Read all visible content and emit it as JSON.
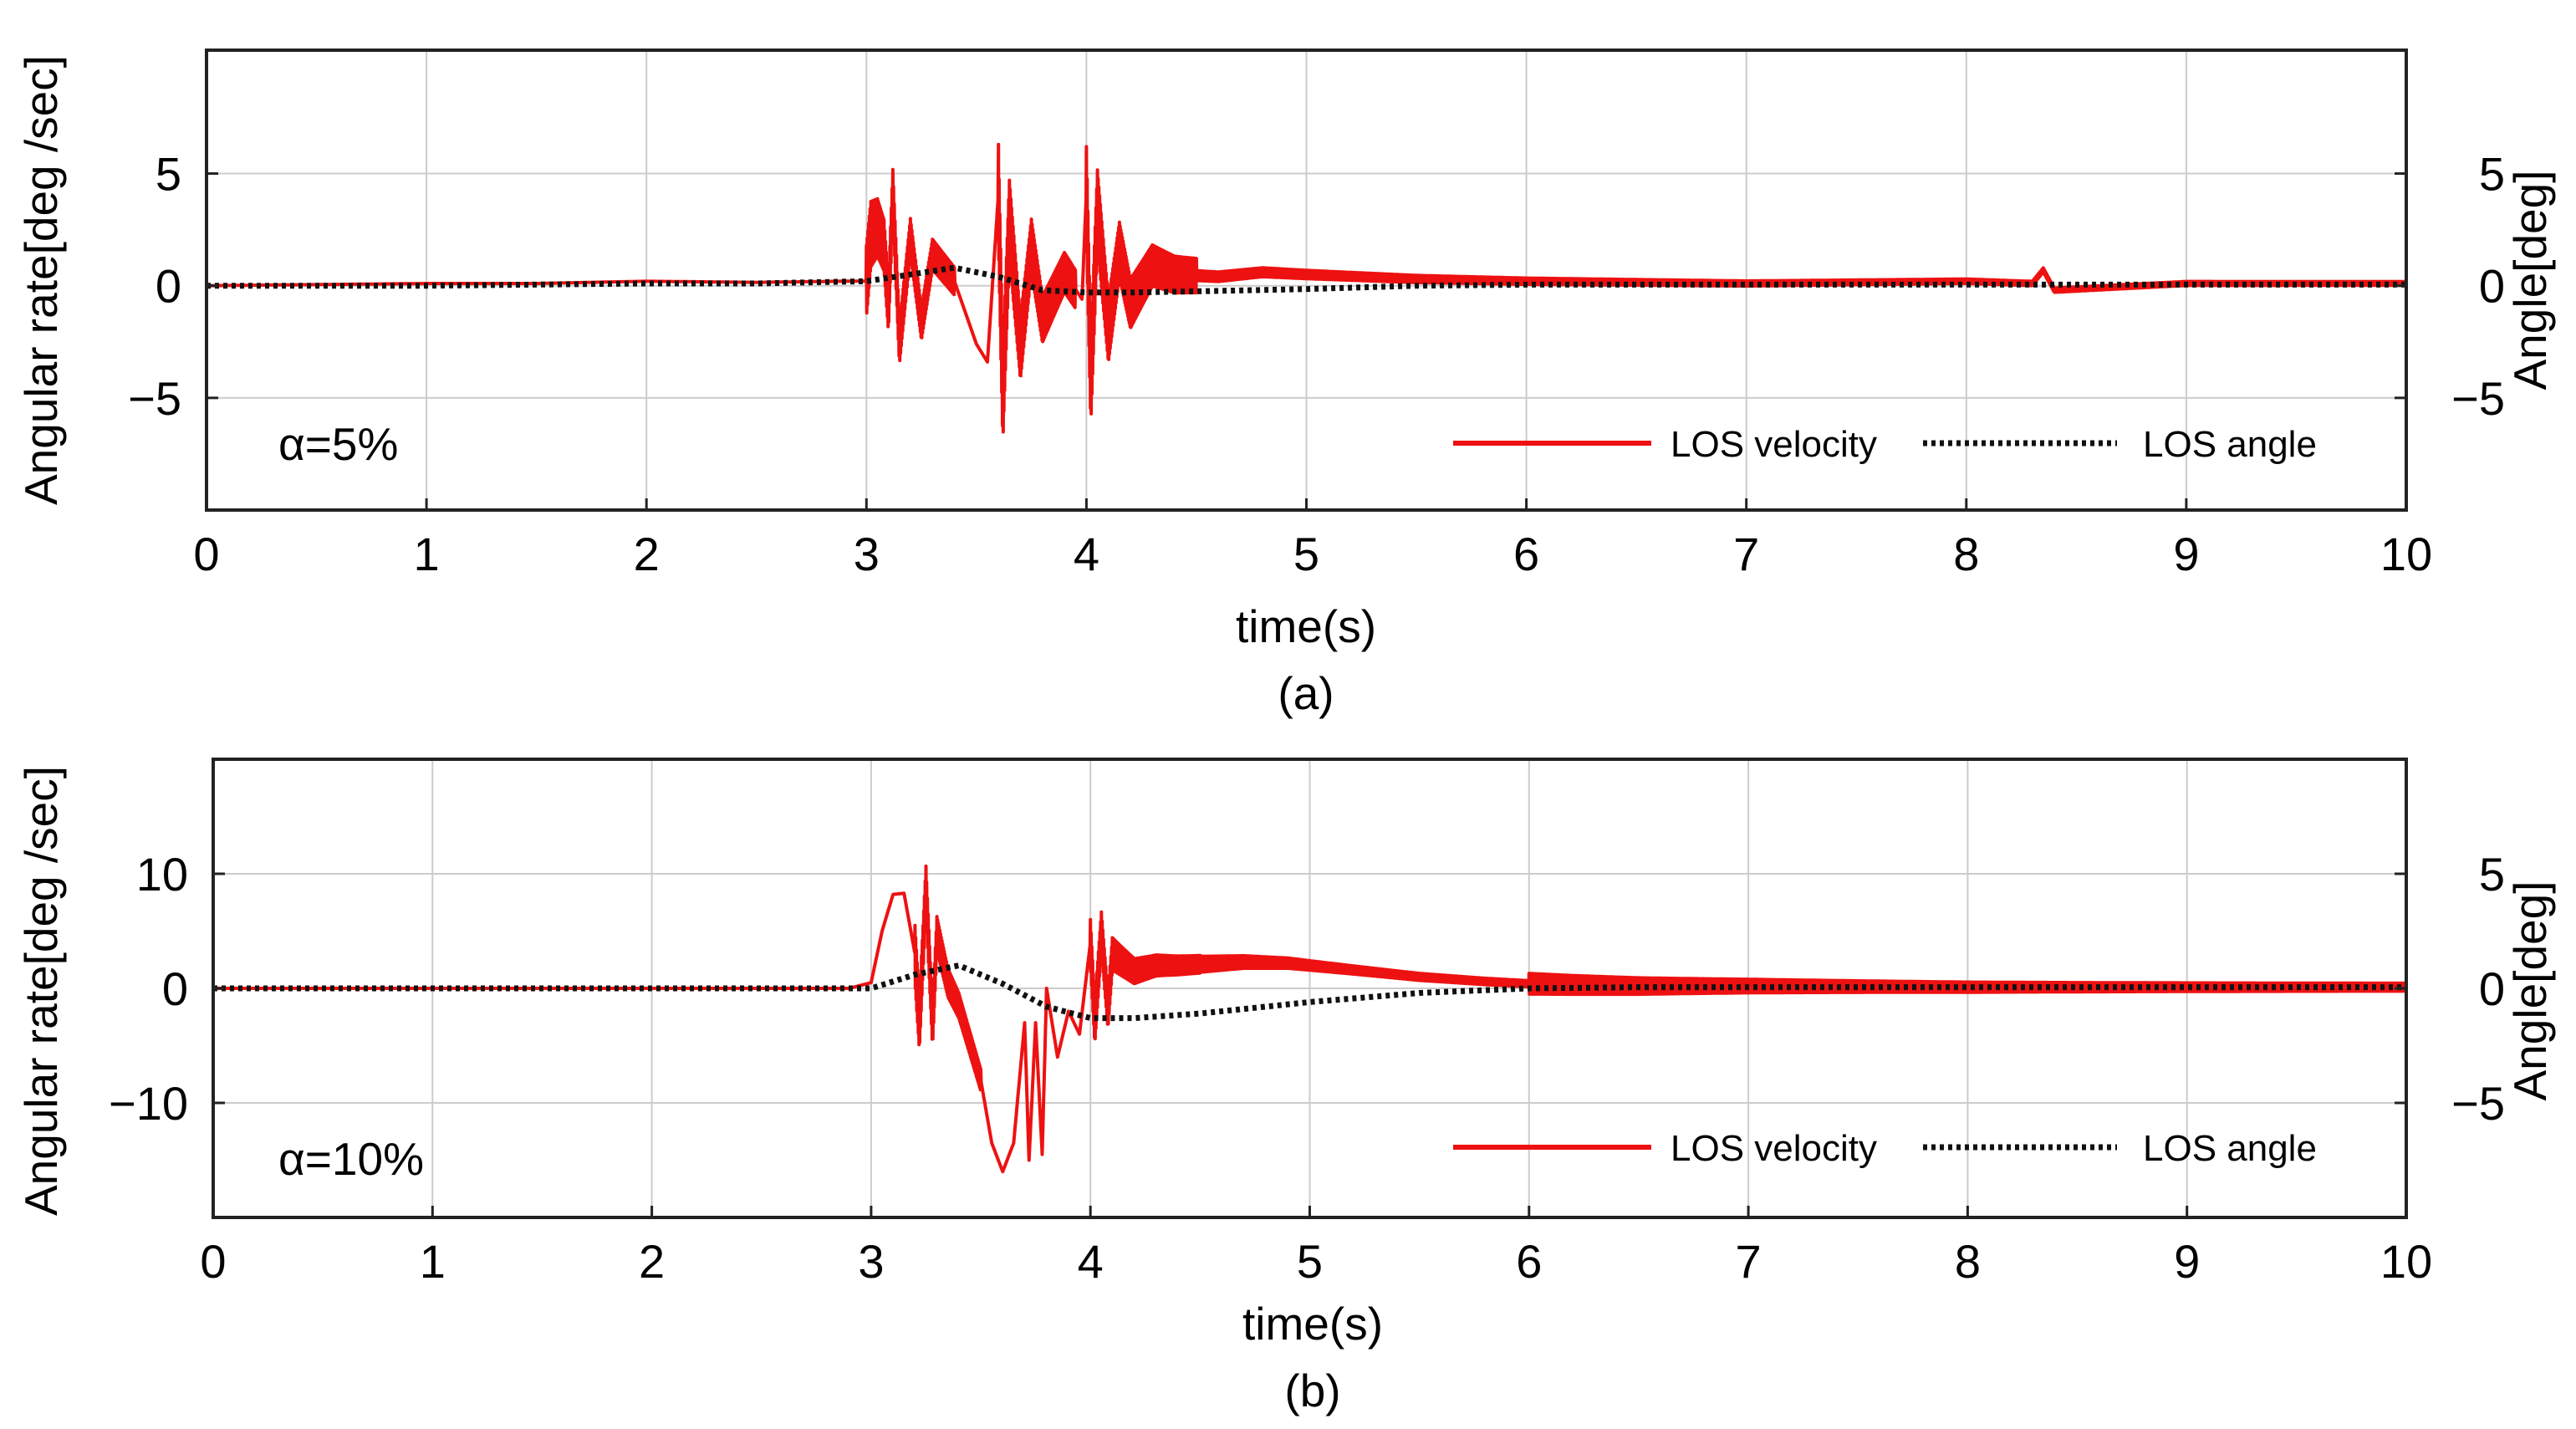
{
  "chart_data": [
    {
      "type": "line",
      "panel_caption": "(a)",
      "annotation": "α=5%",
      "xlabel": "time(s)",
      "ylabel": "Angular rate[deg /sec]",
      "y2label": "Angle[deg]",
      "xlim": [
        0,
        10
      ],
      "ylim": [
        -10,
        10.5
      ],
      "y2lim": [
        -10,
        10.5
      ],
      "xticks": [
        "0",
        "1",
        "2",
        "3",
        "4",
        "5",
        "6",
        "7",
        "8",
        "9",
        "10"
      ],
      "yticks": [
        {
          "v": 5,
          "label": "5"
        },
        {
          "v": 0,
          "label": "0"
        },
        {
          "v": -5,
          "label": "−5"
        }
      ],
      "y2ticks": [
        {
          "v": 5,
          "label": "5"
        },
        {
          "v": 0,
          "label": "0"
        },
        {
          "v": -5,
          "label": "−5"
        }
      ],
      "grid": true,
      "legend_position": "bottom-right",
      "series": [
        {
          "name": "LOS velocity",
          "color": "#ee1111",
          "style": "solid",
          "axis": "left",
          "x": [
            0,
            0.5,
            1.0,
            1.5,
            2.0,
            2.5,
            2.9,
            3.0,
            3.02,
            3.05,
            3.08,
            3.1,
            3.12,
            3.15,
            3.2,
            3.25,
            3.3,
            3.4,
            3.5,
            3.55,
            3.6,
            3.62,
            3.65,
            3.7,
            3.75,
            3.8,
            3.9,
            3.98,
            4.0,
            4.02,
            4.05,
            4.1,
            4.15,
            4.2,
            4.3,
            4.4,
            4.6,
            4.8,
            5.0,
            5.5,
            6.0,
            7.0,
            8.0,
            8.3,
            8.35,
            8.4,
            9.0,
            10.0
          ],
          "y": [
            0,
            0.05,
            0.1,
            0.1,
            0.2,
            0.15,
            0.2,
            0.2,
            2.3,
            2.6,
            1.8,
            -1.0,
            4.2,
            -2.6,
            2.2,
            -1.7,
            1.4,
            0.2,
            -2.6,
            -3.4,
            4.1,
            -5.0,
            3.0,
            -2.8,
            1.8,
            -1.5,
            0.6,
            -0.6,
            4.2,
            -4.3,
            3.5,
            -2.0,
            1.6,
            -0.8,
            0.9,
            0.5,
            0.4,
            0.6,
            0.5,
            0.3,
            0.2,
            0.1,
            0.2,
            0.1,
            0.7,
            -0.2,
            0.1,
            0.1
          ],
          "band": [
            {
              "x": [
                3.0,
                3.4
              ],
              "amp": 1.6
            },
            {
              "x": [
                3.6,
                3.95
              ],
              "amp": 2.2
            },
            {
              "x": [
                4.0,
                4.5
              ],
              "amp": 2.0
            },
            {
              "x": [
                4.5,
                10.0
              ],
              "amp": 0.22
            }
          ]
        },
        {
          "name": "LOS angle",
          "color": "#111111",
          "style": "dotted",
          "axis": "right",
          "x": [
            0,
            1,
            2,
            2.5,
            3.0,
            3.2,
            3.4,
            3.6,
            3.8,
            4.0,
            4.2,
            4.5,
            5.0,
            5.5,
            6,
            7,
            8,
            9,
            10
          ],
          "y": [
            0,
            0,
            0.1,
            0.1,
            0.2,
            0.5,
            0.8,
            0.4,
            -0.2,
            -0.3,
            -0.3,
            -0.25,
            -0.15,
            0,
            0.05,
            0.05,
            0.05,
            0.05,
            0.05
          ]
        }
      ]
    },
    {
      "type": "line",
      "panel_caption": "(b)",
      "annotation": "α=10%",
      "xlabel": "time(s)",
      "ylabel": "Angular rate[deg /sec]",
      "y2label": "Angle[deg]",
      "xlim": [
        0,
        10
      ],
      "ylim": [
        -20,
        20
      ],
      "y2lim": [
        -10,
        10
      ],
      "xticks": [
        "0",
        "1",
        "2",
        "3",
        "4",
        "5",
        "6",
        "7",
        "8",
        "9",
        "10"
      ],
      "yticks": [
        {
          "v": 10,
          "label": "10"
        },
        {
          "v": 0,
          "label": "0"
        },
        {
          "v": -10,
          "label": "−10"
        }
      ],
      "y2ticks": [
        {
          "v": 5,
          "label": "5"
        },
        {
          "v": 0,
          "label": "0"
        },
        {
          "v": -5,
          "label": "−5"
        }
      ],
      "grid": true,
      "legend_position": "bottom-right",
      "series": [
        {
          "name": "LOS velocity",
          "color": "#ee1111",
          "style": "solid",
          "axis": "left",
          "x": [
            0,
            1,
            2,
            2.9,
            3.0,
            3.05,
            3.1,
            3.15,
            3.2,
            3.22,
            3.25,
            3.28,
            3.3,
            3.35,
            3.4,
            3.5,
            3.55,
            3.6,
            3.65,
            3.7,
            3.72,
            3.75,
            3.78,
            3.8,
            3.85,
            3.9,
            3.95,
            4.0,
            4.02,
            4.05,
            4.08,
            4.1,
            4.2,
            4.3,
            4.4,
            4.5,
            4.7,
            4.9,
            5.0,
            5.2,
            5.5,
            5.8,
            6.0,
            6.2,
            6.5,
            7,
            8,
            9,
            10
          ],
          "y": [
            0,
            0,
            0,
            0,
            0.5,
            5.0,
            8.2,
            8.3,
            3.0,
            -3.2,
            8.8,
            -3.5,
            4.8,
            0.5,
            -1.5,
            -8.0,
            -13.5,
            -16.0,
            -13.5,
            -3.0,
            -15.0,
            -3.0,
            -14.5,
            0,
            -6.0,
            -2.0,
            -4.0,
            4.0,
            -3.0,
            5.0,
            -2.0,
            3.0,
            1.5,
            2.0,
            2.0,
            2.1,
            2.3,
            2.2,
            2.0,
            1.6,
            1.0,
            0.6,
            0.4,
            0.3,
            0.2,
            0.2,
            0.1,
            0.1,
            0.1
          ],
          "band": [
            {
              "x": [
                3.2,
                3.5
              ],
              "amp": 2.5
            },
            {
              "x": [
                4.0,
                4.5
              ],
              "amp": 2.0
            },
            {
              "x": [
                4.5,
                6.0
              ],
              "amp": 0.7
            },
            {
              "x": [
                6.0,
                10.0
              ],
              "amp": 0.9
            }
          ]
        },
        {
          "name": "LOS angle",
          "color": "#111111",
          "style": "dotted",
          "axis": "right",
          "x": [
            0,
            1,
            2,
            3,
            3.2,
            3.4,
            3.6,
            3.8,
            4.0,
            4.2,
            4.5,
            5.0,
            5.5,
            6.0,
            6.5,
            7,
            8,
            9,
            10
          ],
          "y": [
            0,
            0,
            0,
            0,
            0.6,
            1.0,
            0.2,
            -0.8,
            -1.3,
            -1.3,
            -1.1,
            -0.6,
            -0.2,
            0,
            0.05,
            0.05,
            0.05,
            0.05,
            0.05
          ]
        }
      ]
    }
  ]
}
